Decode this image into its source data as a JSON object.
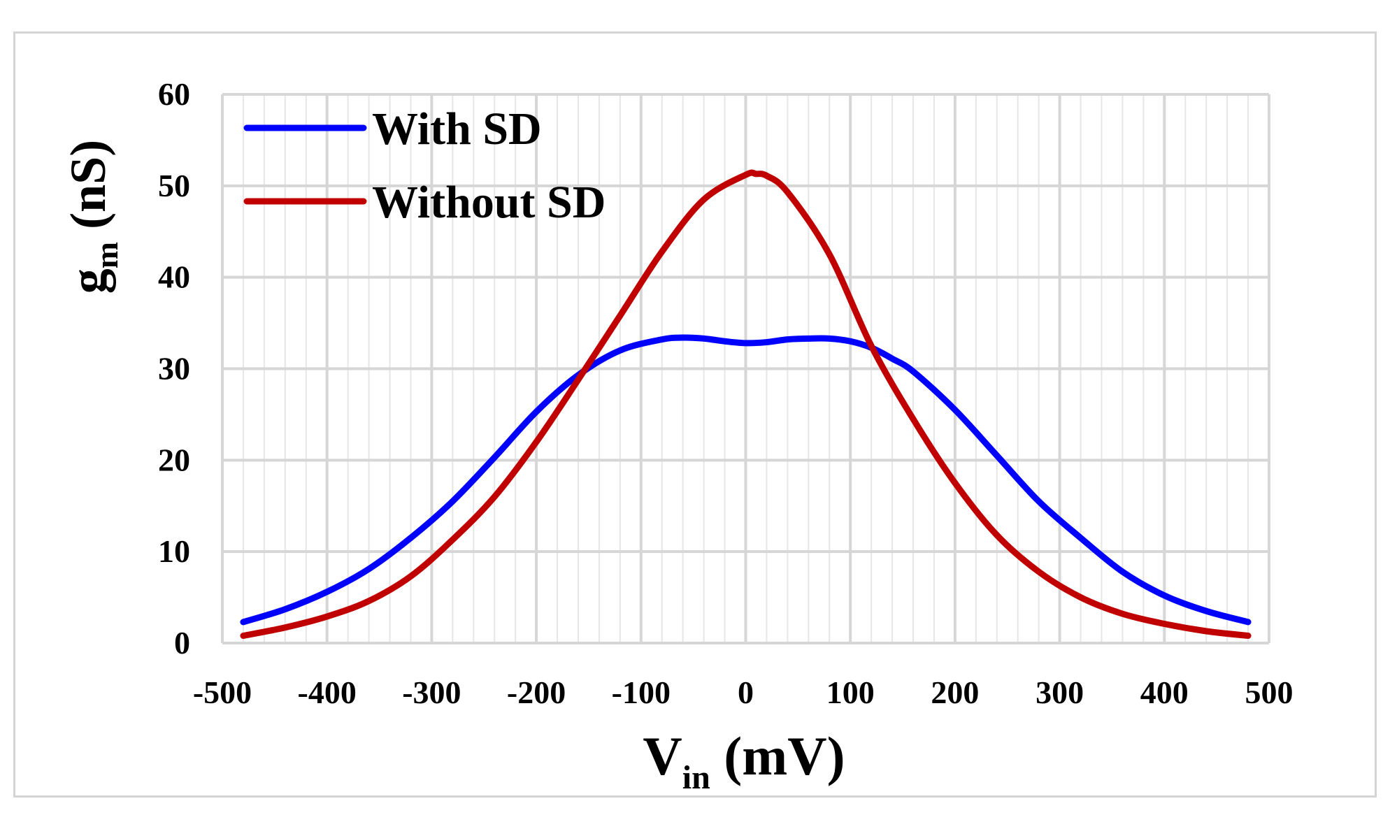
{
  "chart_data": {
    "type": "line",
    "title": "",
    "xlabel": {
      "main": "V",
      "sub": "in",
      "unit": " (mV)"
    },
    "ylabel": {
      "main": "g",
      "sub": "m",
      "unit": " (nS)"
    },
    "xlim": [
      -500,
      500
    ],
    "ylim": [
      0,
      60
    ],
    "x_ticks": [
      -500,
      -400,
      -300,
      -200,
      -100,
      0,
      100,
      200,
      300,
      400,
      500
    ],
    "y_ticks": [
      0,
      10,
      20,
      30,
      40,
      50,
      60
    ],
    "x_minor_step": 20,
    "grid": true,
    "legend_position": "top-left",
    "series": [
      {
        "name": "With SD",
        "color": "#0000ff",
        "x": [
          -480,
          -440,
          -400,
          -360,
          -320,
          -280,
          -240,
          -200,
          -160,
          -120,
          -80,
          -60,
          -40,
          -20,
          0,
          20,
          40,
          60,
          80,
          100,
          120,
          140,
          160,
          200,
          240,
          280,
          320,
          360,
          400,
          440,
          480
        ],
        "y": [
          2.3,
          3.7,
          5.6,
          8.1,
          11.5,
          15.5,
          20.3,
          25.3,
          29.3,
          32.0,
          33.2,
          33.4,
          33.3,
          33.0,
          32.8,
          32.9,
          33.2,
          33.3,
          33.3,
          33.0,
          32.3,
          31.1,
          29.7,
          25.5,
          20.5,
          15.5,
          11.5,
          7.8,
          5.2,
          3.5,
          2.3
        ]
      },
      {
        "name": "Without SD",
        "color": "#c00000",
        "x": [
          -480,
          -440,
          -400,
          -360,
          -320,
          -280,
          -240,
          -200,
          -160,
          -120,
          -80,
          -40,
          0,
          10,
          20,
          40,
          80,
          120,
          160,
          200,
          240,
          280,
          320,
          360,
          400,
          440,
          480
        ],
        "y": [
          0.8,
          1.7,
          2.9,
          4.6,
          7.3,
          11.3,
          16.0,
          22.0,
          28.8,
          35.8,
          42.8,
          48.5,
          51.2,
          51.3,
          51.1,
          49.3,
          42.5,
          32.5,
          24.5,
          17.5,
          11.8,
          7.8,
          5.0,
          3.2,
          2.1,
          1.3,
          0.8
        ]
      }
    ]
  }
}
